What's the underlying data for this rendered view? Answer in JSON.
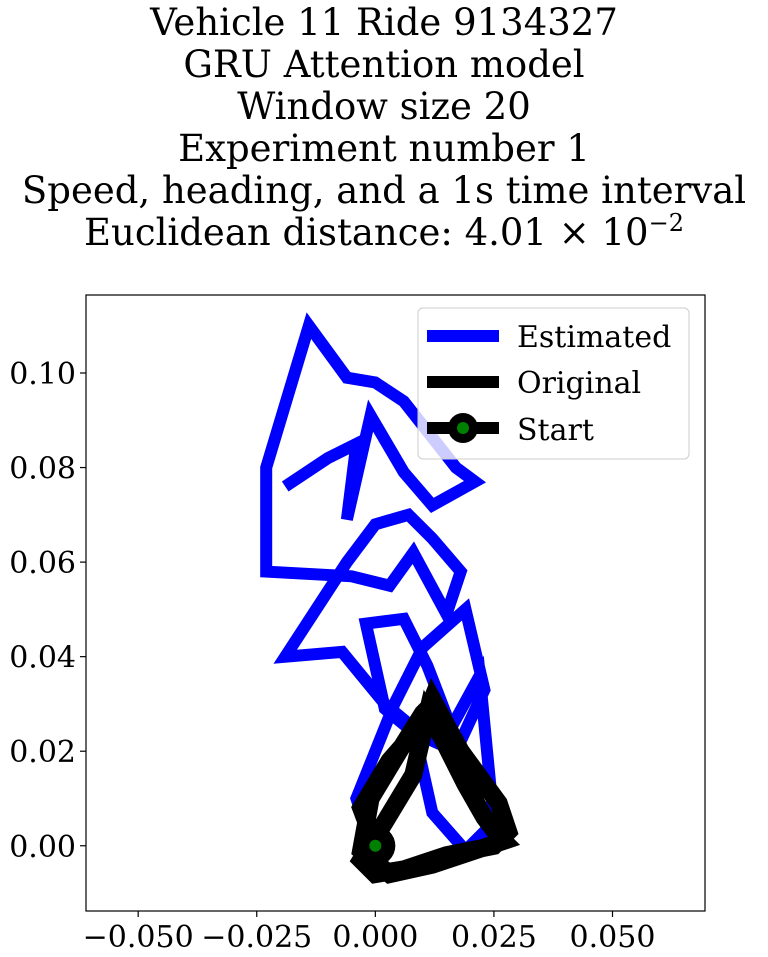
{
  "chart_data": {
    "type": "line",
    "title": [
      "Vehicle 11 Ride 9134327",
      "GRU Attention model",
      "Window size 20",
      "Experiment number 1",
      "Speed, heading, and a 1s time interval",
      "Euclidean distance: 4.01 × 10⁻²"
    ],
    "title_parts": {
      "distance_prefix": "Euclidean distance: 4.01 × 10",
      "distance_exponent": "−2"
    },
    "xlim": [
      -0.061,
      0.0695
    ],
    "ylim": [
      -0.0138,
      0.1165
    ],
    "x_ticks": [
      -0.05,
      -0.025,
      0.0,
      0.025,
      0.05
    ],
    "x_tick_labels": [
      "−0.050",
      "−0.025",
      "0.000",
      "0.025",
      "0.050"
    ],
    "y_ticks": [
      0.0,
      0.02,
      0.04,
      0.06,
      0.08,
      0.1
    ],
    "y_tick_labels": [
      "0.00",
      "0.02",
      "0.04",
      "0.06",
      "0.08",
      "0.10"
    ],
    "grid": false,
    "legend": {
      "position": "top-right",
      "entries": [
        "Estimated",
        "Original",
        "Start"
      ]
    },
    "series": [
      {
        "name": "Estimated",
        "color": "#0000ff",
        "x": [
          0.0,
          -0.004,
          0.004,
          0.01,
          0.019,
          0.023,
          0.017,
          0.008,
          0.002,
          -0.002,
          0.006,
          0.011,
          0.016,
          0.022,
          0.025,
          0.019,
          0.012,
          0.008,
          0.002,
          -0.007,
          -0.019,
          -0.006,
          0.0,
          0.007,
          0.012,
          0.018,
          0.015,
          0.008,
          0.003,
          -0.005,
          -0.023,
          -0.023,
          -0.014,
          -0.006,
          0.0,
          0.006,
          0.017,
          0.021,
          0.012,
          0.006,
          -0.001,
          -0.006,
          -0.004,
          -0.01,
          -0.019
        ],
        "y": [
          -0.002,
          0.01,
          0.03,
          0.042,
          0.05,
          0.033,
          0.02,
          0.024,
          0.029,
          0.047,
          0.048,
          0.038,
          0.025,
          0.036,
          0.005,
          -0.001,
          0.007,
          0.025,
          0.03,
          0.041,
          0.04,
          0.06,
          0.068,
          0.07,
          0.065,
          0.058,
          0.049,
          0.062,
          0.055,
          0.057,
          0.058,
          0.08,
          0.11,
          0.099,
          0.098,
          0.094,
          0.08,
          0.077,
          0.072,
          0.079,
          0.091,
          0.069,
          0.085,
          0.082,
          0.076
        ]
      },
      {
        "name": "Original",
        "color": "#000000",
        "x": [
          0.0,
          -0.003,
          0.003,
          0.01,
          0.012,
          0.018,
          0.026,
          0.028,
          0.025,
          0.015,
          0.006,
          0.0,
          -0.003,
          0.002,
          0.008,
          0.011,
          0.014,
          0.019,
          0.023,
          0.026,
          0.027,
          0.021,
          0.012,
          0.003,
          -0.003,
          -0.001,
          0.005,
          0.01,
          0.012
        ],
        "y": [
          0.0,
          0.008,
          0.018,
          0.026,
          0.031,
          0.02,
          0.009,
          0.003,
          0.0,
          -0.002,
          -0.005,
          -0.006,
          -0.003,
          0.005,
          0.015,
          0.028,
          0.023,
          0.013,
          0.006,
          0.002,
          0.001,
          -0.001,
          -0.004,
          -0.006,
          -0.001,
          0.01,
          0.02,
          0.028,
          0.03
        ]
      }
    ],
    "start_point": {
      "name": "Start",
      "x": 0.0,
      "y": 0.0,
      "color": "#008000"
    }
  }
}
